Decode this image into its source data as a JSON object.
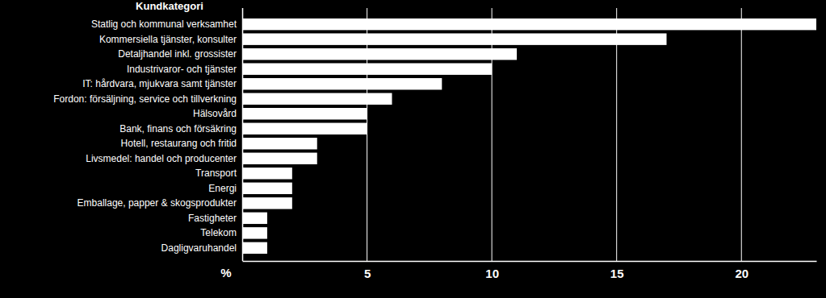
{
  "chart_data": {
    "type": "bar",
    "orientation": "horizontal",
    "y_label": "Kundkategori",
    "x_label": "%",
    "categories": [
      "Statlig och kommunal verksamhet",
      "Kommersiella tjänster, konsulter",
      "Detaljhandel inkl. grossister",
      "Industrivaror- och tjänster",
      "IT: hårdvara, mjukvara samt tjänster",
      "Fordon: försäljning, service och tillverkning",
      "Hälsovård",
      "Bank, finans och försäkring",
      "Hotell, restaurang och fritid",
      "Livsmedel: handel och producenter",
      "Transport",
      "Energi",
      "Emballage, papper & skogsprodukter",
      "Fastigheter",
      "Telekom",
      "Dagligvaruhandel"
    ],
    "values": [
      23,
      17,
      11,
      10,
      8,
      6,
      5,
      5,
      3,
      3,
      2,
      2,
      2,
      1,
      1,
      1
    ],
    "color": "#ffffff",
    "xlim": [
      0,
      23
    ],
    "xticks": [
      5,
      10,
      15,
      20
    ],
    "grid": true
  }
}
